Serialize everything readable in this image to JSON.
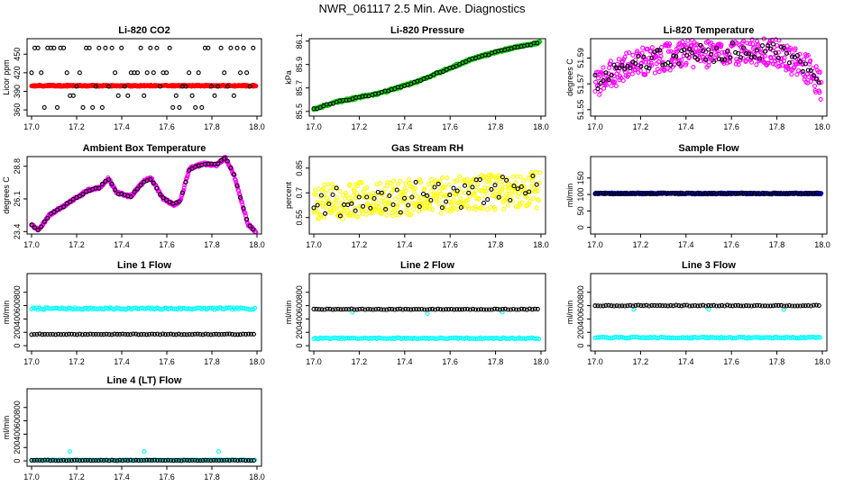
{
  "title": "NWR_061117  2.5 Min. Ave. Diagnostics",
  "chart_data": [
    {
      "id": "co2",
      "type": "scatter",
      "title": "Li-820 CO2",
      "ylabel": "Licor ppm",
      "xlim": [
        16.98,
        18.02
      ],
      "ylim": [
        350,
        475
      ],
      "yticks": [
        360,
        390,
        420,
        450
      ],
      "xticks": [
        17.0,
        17.2,
        17.4,
        17.6,
        17.8,
        18.0
      ],
      "series": [
        {
          "color": "#ff0000",
          "values": []
        },
        {
          "color": "#000000",
          "values": []
        }
      ]
    },
    {
      "id": "pressure",
      "type": "scatter",
      "title": "Li-820 Pressure",
      "ylabel": "kPa",
      "xlim": [
        16.98,
        18.02
      ],
      "ylim": [
        85.46,
        86.12
      ],
      "yticks": [
        85.5,
        85.7,
        85.9,
        86.1
      ],
      "xticks": [
        17.0,
        17.2,
        17.4,
        17.6,
        17.8,
        18.0
      ],
      "series": [
        {
          "color": "#00cc00",
          "values": []
        },
        {
          "color": "#000000",
          "values": []
        }
      ]
    },
    {
      "id": "licor_temp",
      "type": "scatter",
      "title": "Li-820 Temperature",
      "ylabel": "degrees C",
      "xlim": [
        16.98,
        18.02
      ],
      "ylim": [
        51.545,
        51.605
      ],
      "yticks": [
        51.55,
        51.57,
        51.59
      ],
      "xticks": [
        17.0,
        17.2,
        17.4,
        17.6,
        17.8,
        18.0
      ],
      "series": [
        {
          "color": "#ff00ff",
          "values": []
        },
        {
          "color": "#000000",
          "values": []
        }
      ]
    },
    {
      "id": "ambient_temp",
      "type": "scatter",
      "title": "Ambient Box Temperature",
      "ylabel": "degrees C",
      "xlim": [
        16.98,
        18.02
      ],
      "ylim": [
        23.2,
        29.6
      ],
      "yticks": [
        23.4,
        26.1,
        28.8
      ],
      "xticks": [
        17.0,
        17.2,
        17.4,
        17.6,
        17.8,
        18.0
      ],
      "series": [
        {
          "color": "#ff00ff",
          "values": []
        },
        {
          "color": "#000000",
          "values": []
        }
      ]
    },
    {
      "id": "rh",
      "type": "scatter",
      "title": "Gas Stream RH",
      "ylabel": "percent",
      "xlim": [
        16.98,
        18.02
      ],
      "ylim": [
        0.45,
        0.92
      ],
      "yticks": [
        0.55,
        0.7,
        0.85
      ],
      "xticks": [
        17.0,
        17.2,
        17.4,
        17.6,
        17.8,
        18.0
      ],
      "series": [
        {
          "color": "#ffff00",
          "values": []
        },
        {
          "color": "#000000",
          "values": []
        }
      ]
    },
    {
      "id": "sample_flow",
      "type": "scatter",
      "title": "Sample Flow",
      "ylabel": "ml/min",
      "xlim": [
        16.98,
        18.02
      ],
      "ylim": [
        -20,
        215
      ],
      "yticks": [
        0,
        50,
        100,
        150
      ],
      "xticks": [
        17.0,
        17.2,
        17.4,
        17.6,
        17.8,
        18.0
      ],
      "series": [
        {
          "color": "#0000cc",
          "values": []
        },
        {
          "color": "#000000",
          "values": []
        }
      ]
    },
    {
      "id": "line1",
      "type": "scatter",
      "title": "Line 1 Flow",
      "ylabel": "ml/min",
      "xlim": [
        16.98,
        18.02
      ],
      "ylim": [
        -80,
        1080
      ],
      "yticks": [
        0,
        200,
        400,
        600,
        800
      ],
      "xticks": [
        17.0,
        17.2,
        17.4,
        17.6,
        17.8,
        18.0
      ],
      "series": [
        {
          "color": "#00ffff",
          "values": []
        },
        {
          "color": "#000000",
          "values": []
        }
      ]
    },
    {
      "id": "line2",
      "type": "scatter",
      "title": "Line 2 Flow",
      "ylabel": "ml/min",
      "xlim": [
        16.98,
        18.02
      ],
      "ylim": [
        -80,
        1080
      ],
      "yticks": [
        0,
        200,
        400,
        600,
        800
      ],
      "xticks": [
        17.0,
        17.2,
        17.4,
        17.6,
        17.8,
        18.0
      ],
      "series": [
        {
          "color": "#00ffff",
          "values": []
        },
        {
          "color": "#000000",
          "values": []
        }
      ]
    },
    {
      "id": "line3",
      "type": "scatter",
      "title": "Line 3 Flow",
      "ylabel": "ml/min",
      "xlim": [
        16.98,
        18.02
      ],
      "ylim": [
        -80,
        1080
      ],
      "yticks": [
        0,
        200,
        400,
        600,
        800
      ],
      "xticks": [
        17.0,
        17.2,
        17.4,
        17.6,
        17.8,
        18.0
      ],
      "series": [
        {
          "color": "#00ffff",
          "values": []
        },
        {
          "color": "#000000",
          "values": []
        }
      ]
    },
    {
      "id": "line4",
      "type": "scatter",
      "title": "Line 4 (LT) Flow",
      "ylabel": "ml/min",
      "xlim": [
        16.98,
        18.02
      ],
      "ylim": [
        -80,
        1080
      ],
      "yticks": [
        0,
        200,
        400,
        600,
        800
      ],
      "xticks": [
        17.0,
        17.2,
        17.4,
        17.6,
        17.8,
        18.0
      ],
      "series": [
        {
          "color": "#00ffff",
          "values": []
        },
        {
          "color": "#000000",
          "values": []
        }
      ]
    }
  ]
}
